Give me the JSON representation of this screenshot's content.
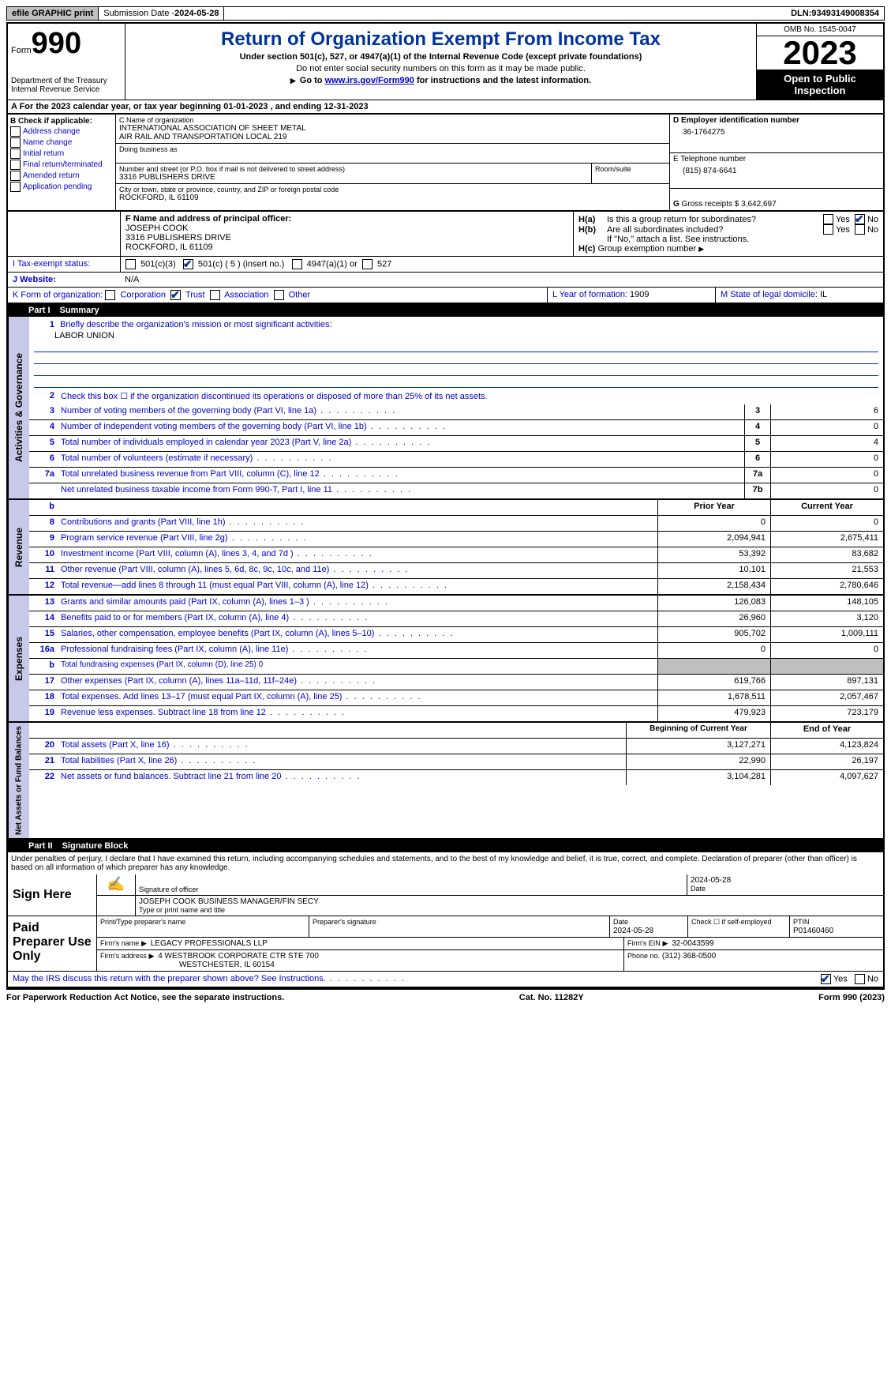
{
  "topbar": {
    "efile": "efile GRAPHIC print",
    "submission_label": "Submission Date - ",
    "submission_date": "2024-05-28",
    "dln_label": "DLN: ",
    "dln": "93493149008354"
  },
  "header": {
    "form_prefix": "Form",
    "form_number": "990",
    "dept1": "Department of the Treasury",
    "dept2": "Internal Revenue Service",
    "title": "Return of Organization Exempt From Income Tax",
    "subtitle": "Under section 501(c), 527, or 4947(a)(1) of the Internal Revenue Code (except private foundations)",
    "warning": "Do not enter social security numbers on this form as it may be made public.",
    "goto_pre": "Go to ",
    "goto_link": "www.irs.gov/Form990",
    "goto_post": " for instructions and the latest information.",
    "omb": "OMB No. 1545-0047",
    "year": "2023",
    "inspect": "Open to Public Inspection"
  },
  "section_a": {
    "text_pre": "A For the 2023 calendar year, or tax year beginning ",
    "begin": "01-01-2023",
    "mid": " , and ending ",
    "end": "12-31-2023"
  },
  "b": {
    "label": "B Check if applicable:",
    "opts": [
      "Address change",
      "Name change",
      "Initial return",
      "Final return/terminated",
      "Amended return",
      "Application pending"
    ]
  },
  "c": {
    "name_label": "C Name of organization",
    "name1": "INTERNATIONAL ASSOCIATION OF SHEET METAL",
    "name2": "AIR RAIL AND TRANSPORTATION LOCAL 219",
    "dba_label": "Doing business as",
    "street_label": "Number and street (or P.O. box if mail is not delivered to street address)",
    "room_label": "Room/suite",
    "street": "3316 PUBLISHERS DRIVE",
    "city_label": "City or town, state or province, country, and ZIP or foreign postal code",
    "city": "ROCKFORD, IL  61109"
  },
  "d": {
    "label": "D Employer identification number",
    "val": "36-1764275"
  },
  "e": {
    "label": "E Telephone number",
    "val": "(815) 874-6641"
  },
  "g": {
    "label": "G",
    "text": "Gross receipts $ ",
    "val": "3,642,697"
  },
  "f": {
    "label": "F  Name and address of principal officer:",
    "name": "JOSEPH COOK",
    "street": "3316 PUBLISHERS DRIVE",
    "city": "ROCKFORD, IL  61109"
  },
  "h": {
    "a_label": "H(a)",
    "a_text": "Is this a group return for subordinates?",
    "a_yes": "Yes",
    "a_no": "No",
    "b_label": "H(b)",
    "b_text": "Are all subordinates included?",
    "b_note": "If \"No,\" attach a list. See instructions.",
    "c_label": "H(c)",
    "c_text": "Group exemption number"
  },
  "i": {
    "label": "I   Tax-exempt status:",
    "opts": [
      "501(c)(3)",
      "501(c) ( 5 ) (insert no.)",
      "4947(a)(1) or",
      "527"
    ],
    "checked_idx": 1
  },
  "j": {
    "label": "J   Website:",
    "val": "N/A"
  },
  "k": {
    "label": "K Form of organization:",
    "opts": [
      "Corporation",
      "Trust",
      "Association",
      "Other"
    ],
    "checked_idx": 1
  },
  "l": {
    "label": "L Year of formation: ",
    "val": "1909"
  },
  "m": {
    "label": "M State of legal domicile: ",
    "val": "IL"
  },
  "part1": {
    "bar_part": "Part I",
    "bar_title": "Summary",
    "tabs": [
      "Activities & Governance",
      "Revenue",
      "Expenses",
      "Net Assets or Fund Balances"
    ],
    "q1_label": "1",
    "q1_text": "Briefly describe the organization's mission or most significant activities:",
    "q1_val": "LABOR UNION",
    "q2_label": "2",
    "q2_text": "Check this box ☐ if the organization discontinued its operations or disposed of more than 25% of its net assets.",
    "gov_lines": [
      {
        "n": "3",
        "d": "Number of voting members of the governing body (Part VI, line 1a)",
        "box": "3",
        "v": "6"
      },
      {
        "n": "4",
        "d": "Number of independent voting members of the governing body (Part VI, line 1b)",
        "box": "4",
        "v": "0"
      },
      {
        "n": "5",
        "d": "Total number of individuals employed in calendar year 2023 (Part V, line 2a)",
        "box": "5",
        "v": "4"
      },
      {
        "n": "6",
        "d": "Total number of volunteers (estimate if necessary)",
        "box": "6",
        "v": "0"
      },
      {
        "n": "7a",
        "d": "Total unrelated business revenue from Part VIII, column (C), line 12",
        "box": "7a",
        "v": "0"
      },
      {
        "n": "",
        "d": "Net unrelated business taxable income from Form 990-T, Part I, line 11",
        "box": "7b",
        "v": "0"
      }
    ],
    "rev_hdr_prior": "Prior Year",
    "rev_hdr_curr": "Current Year",
    "rev_lines": [
      {
        "n": "8",
        "d": "Contributions and grants (Part VIII, line 1h)",
        "p": "0",
        "c": "0"
      },
      {
        "n": "9",
        "d": "Program service revenue (Part VIII, line 2g)",
        "p": "2,094,941",
        "c": "2,675,411"
      },
      {
        "n": "10",
        "d": "Investment income (Part VIII, column (A), lines 3, 4, and 7d )",
        "p": "53,392",
        "c": "83,682"
      },
      {
        "n": "11",
        "d": "Other revenue (Part VIII, column (A), lines 5, 6d, 8c, 9c, 10c, and 11e)",
        "p": "10,101",
        "c": "21,553"
      },
      {
        "n": "12",
        "d": "Total revenue—add lines 8 through 11 (must equal Part VIII, column (A), line 12)",
        "p": "2,158,434",
        "c": "2,780,646"
      }
    ],
    "exp_lines": [
      {
        "n": "13",
        "d": "Grants and similar amounts paid (Part IX, column (A), lines 1–3 )",
        "p": "126,083",
        "c": "148,105"
      },
      {
        "n": "14",
        "d": "Benefits paid to or for members (Part IX, column (A), line 4)",
        "p": "26,960",
        "c": "3,120"
      },
      {
        "n": "15",
        "d": "Salaries, other compensation, employee benefits (Part IX, column (A), lines 5–10)",
        "p": "905,702",
        "c": "1,009,111"
      },
      {
        "n": "16a",
        "d": "Professional fundraising fees (Part IX, column (A), line 11e)",
        "p": "0",
        "c": "0"
      },
      {
        "n": "b",
        "d": "Total fundraising expenses (Part IX, column (D), line 25) 0",
        "p": "",
        "c": "",
        "shade": true,
        "small": true
      },
      {
        "n": "17",
        "d": "Other expenses (Part IX, column (A), lines 11a–11d, 11f–24e)",
        "p": "619,766",
        "c": "897,131"
      },
      {
        "n": "18",
        "d": "Total expenses. Add lines 13–17 (must equal Part IX, column (A), line 25)",
        "p": "1,678,511",
        "c": "2,057,467"
      },
      {
        "n": "19",
        "d": "Revenue less expenses. Subtract line 18 from line 12",
        "p": "479,923",
        "c": "723,179"
      }
    ],
    "na_hdr_prior": "Beginning of Current Year",
    "na_hdr_curr": "End of Year",
    "na_lines": [
      {
        "n": "20",
        "d": "Total assets (Part X, line 16)",
        "p": "3,127,271",
        "c": "4,123,824"
      },
      {
        "n": "21",
        "d": "Total liabilities (Part X, line 26)",
        "p": "22,990",
        "c": "26,197"
      },
      {
        "n": "22",
        "d": "Net assets or fund balances. Subtract line 21 from line 20",
        "p": "3,104,281",
        "c": "4,097,627"
      }
    ]
  },
  "part2": {
    "bar_part": "Part II",
    "bar_title": "Signature Block",
    "perjury": "Under penalties of perjury, I declare that I have examined this return, including accompanying schedules and statements, and to the best of my knowledge and belief, it is true, correct, and complete. Declaration of preparer (other than officer) is based on all information of which preparer has any knowledge.",
    "sign_here": "Sign Here",
    "sig_officer_label": "Signature of officer",
    "sig_date": "2024-05-28",
    "date_label": "Date",
    "officer_name": "JOSEPH COOK  BUSINESS MANAGER/FIN SECY",
    "officer_type_label": "Type or print name and title",
    "paid_prep": "Paid Preparer Use Only",
    "prep_name_label": "Print/Type preparer's name",
    "prep_sig_label": "Preparer's signature",
    "prep_date_label": "Date",
    "prep_date": "2024-05-28",
    "self_emp_label": "Check ☐ if self-employed",
    "ptin_label": "PTIN",
    "ptin": "P01460460",
    "firm_name_label": "Firm's name",
    "firm_name": "LEGACY PROFESSIONALS LLP",
    "firm_ein_label": "Firm's EIN",
    "firm_ein": "32-0043599",
    "firm_addr_label": "Firm's address",
    "firm_addr1": "4 WESTBROOK CORPORATE CTR STE 700",
    "firm_addr2": "WESTCHESTER, IL  60154",
    "firm_phone_label": "Phone no.",
    "firm_phone": "(312) 368-0500",
    "discuss": "May the IRS discuss this return with the preparer shown above? See Instructions.",
    "yes": "Yes",
    "no": "No"
  },
  "footer": {
    "paperwork": "For Paperwork Reduction Act Notice, see the separate instructions.",
    "cat": "Cat. No. 11282Y",
    "form": "Form 990 (2023)"
  }
}
